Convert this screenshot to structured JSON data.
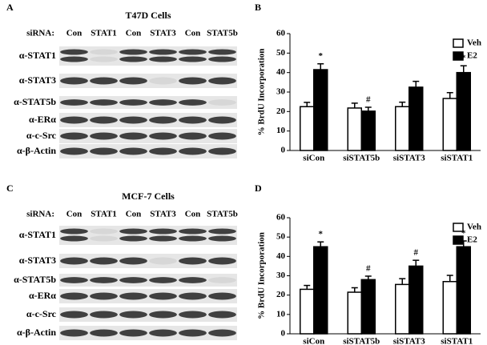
{
  "blots": [
    {
      "panel": "A",
      "title": "T47D Cells",
      "lane_header": "siRNA:",
      "lanes": [
        "Con",
        "STAT1",
        "Con",
        "STAT3",
        "Con",
        "STAT5b"
      ],
      "rows": [
        "α-STAT1",
        "α-STAT3",
        "α-STAT5b",
        "α-ERα",
        "α-c-Src",
        "α-β-Actin"
      ]
    },
    {
      "panel": "C",
      "title": "MCF-7 Cells",
      "lane_header": "siRNA:",
      "lanes": [
        "Con",
        "STAT1",
        "Con",
        "STAT3",
        "Con",
        "STAT5b"
      ],
      "rows": [
        "α-STAT1",
        "α-STAT3",
        "α-STAT5b",
        "α-ERα",
        "α-c-Src",
        "α-β-Actin"
      ]
    }
  ],
  "chart_data": [
    {
      "type": "bar",
      "panel": "B",
      "y_label": "% BrdU Incorporation",
      "categories": [
        "siCon",
        "siSTAT5b",
        "siSTAT3",
        "siSTAT1"
      ],
      "series": [
        {
          "name": "Veh",
          "color": "#ffffff",
          "values": [
            22.5,
            21.8,
            22.5,
            26.7
          ],
          "errors": [
            2.2,
            2.5,
            2.3,
            3
          ]
        },
        {
          "name": "E2",
          "color": "#000000",
          "values": [
            41.5,
            20.2,
            32.5,
            40
          ],
          "errors": [
            3,
            2,
            3,
            3.5
          ]
        }
      ],
      "annotations": [
        "*",
        "#",
        null,
        "*"
      ],
      "ylim": [
        0,
        60
      ],
      "yticks": [
        0,
        10,
        20,
        30,
        40,
        50,
        60
      ],
      "legend": "upper right"
    },
    {
      "type": "bar",
      "panel": "D",
      "y_label": "% BrdU Incorporation",
      "categories": [
        "siCon",
        "siSTAT5b",
        "siSTAT3",
        "siSTAT1"
      ],
      "series": [
        {
          "name": "Veh",
          "color": "#ffffff",
          "values": [
            23,
            21.5,
            25.5,
            27
          ],
          "errors": [
            2,
            2.3,
            3,
            3.2
          ]
        },
        {
          "name": "E2",
          "color": "#000000",
          "values": [
            45,
            28,
            35,
            45
          ],
          "errors": [
            2.5,
            1.8,
            3,
            3
          ]
        }
      ],
      "annotations": [
        "*",
        "#",
        "#",
        "*"
      ],
      "ylim": [
        0,
        60
      ],
      "yticks": [
        0,
        10,
        20,
        30,
        40,
        50,
        60
      ],
      "legend": "upper right"
    }
  ]
}
